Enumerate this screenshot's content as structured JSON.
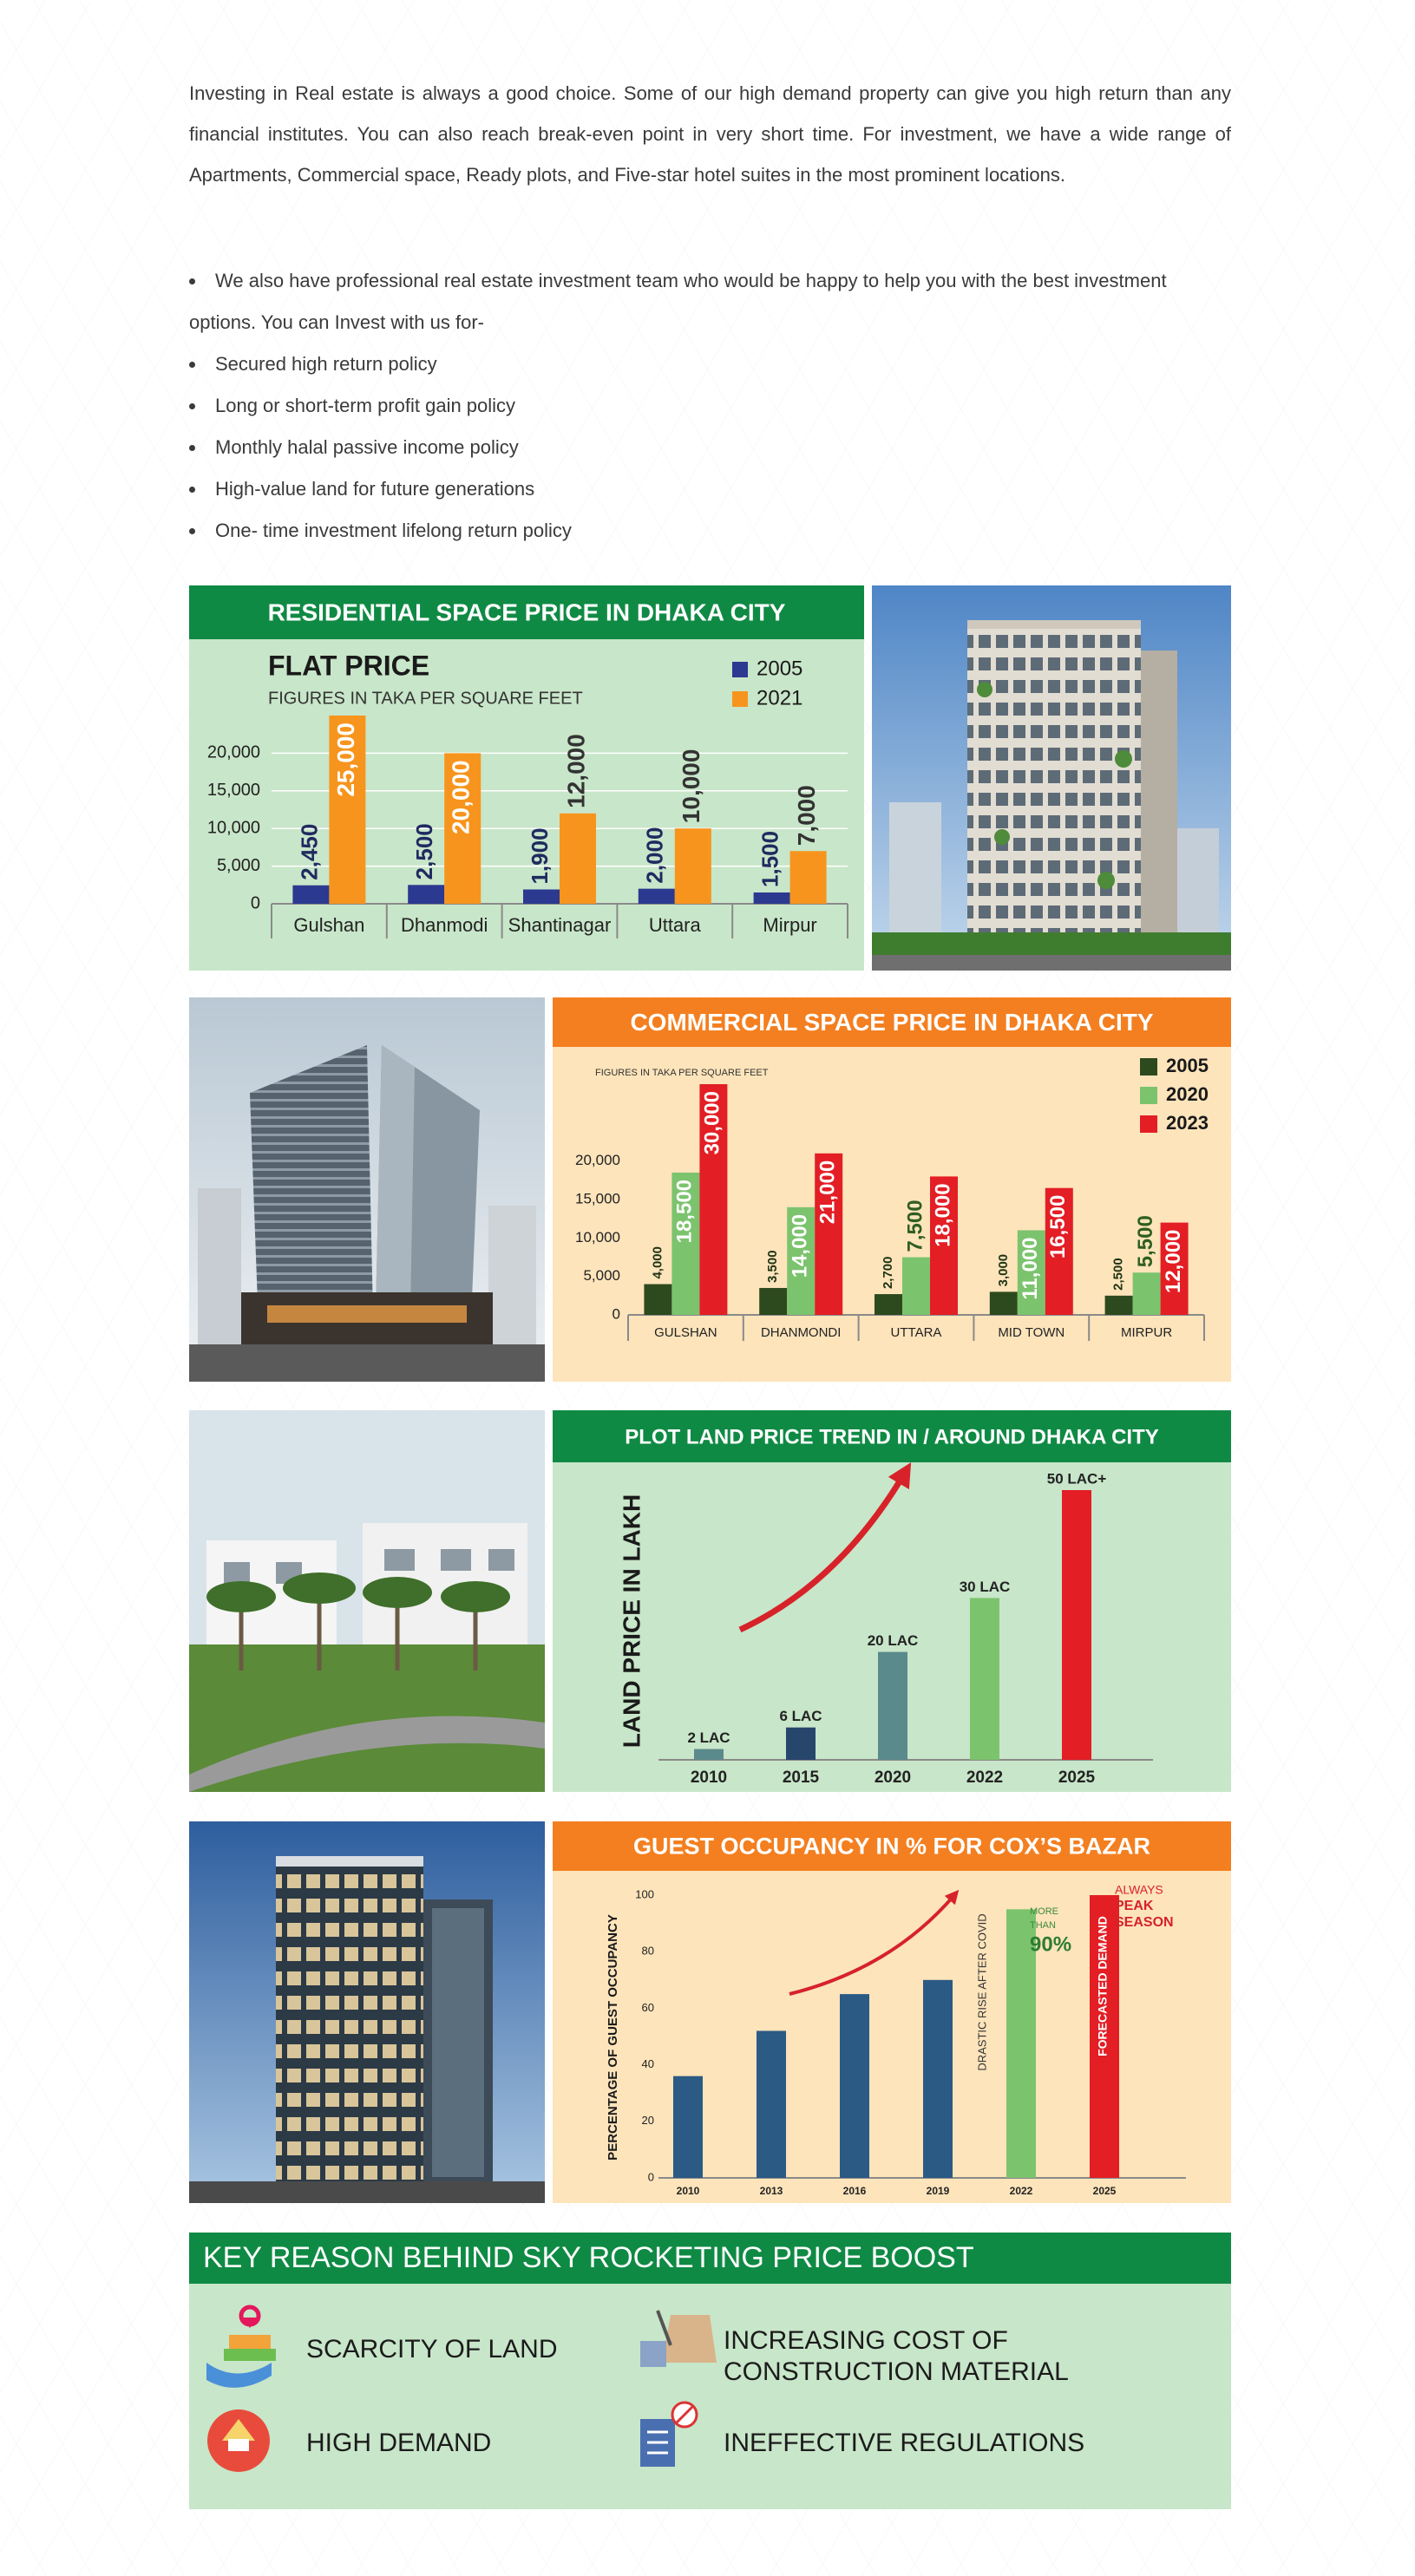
{
  "intro": "Investing in Real estate is always a good choice. Some of our high demand property can give you high return than any financial institutes. You can also reach break-even point in very short time. For investment, we have a wide range of Apartments, Commercial space, Ready plots, and Five-star hotel suites in the most prominent locations.",
  "bullets": [
    "We also have professional real estate investment team who would be happy to help you with the best investment options. You can Invest with us for-",
    "Secured high return policy",
    "Long or short-term profit gain policy",
    "Monthly halal passive income policy",
    "High-value land for future generations",
    "One- time investment lifelong return policy"
  ],
  "chart_data": [
    {
      "type": "bar",
      "title": "RESIDENTIAL SPACE PRICE IN DHAKA CITY",
      "heading": "FLAT PRICE",
      "subtitle": "FIGURES IN TAKA PER SQUARE FEET",
      "categories": [
        "Gulshan",
        "Dhanmodi",
        "Shantinagar",
        "Uttara",
        "Mirpur"
      ],
      "series": [
        {
          "name": "2005",
          "color": "#2b3990",
          "values": [
            2450,
            2500,
            1900,
            2000,
            1500
          ],
          "value_labels": [
            "2,450",
            "2,500",
            "1,900",
            "2,000",
            "1,500"
          ]
        },
        {
          "name": "2021",
          "color": "#f7941d",
          "values": [
            25000,
            20000,
            12000,
            10000,
            7000
          ],
          "value_labels": [
            "25,000",
            "20,000",
            "12,000",
            "10,000",
            "7,000"
          ]
        }
      ],
      "ylim": [
        0,
        25000
      ],
      "yticks": [
        0,
        {
          "value": 5000,
          "label": "5,000"
        },
        {
          "value": 10000,
          "label": "10,000"
        },
        {
          "value": 15000,
          "label": "15,000"
        },
        {
          "value": 20000,
          "label": "20,000"
        }
      ],
      "grid": true,
      "legend": "upper right"
    },
    {
      "type": "bar",
      "title": "COMMERCIAL SPACE PRICE IN DHAKA CITY",
      "subtitle": "FIGURES IN TAKA PER SQUARE FEET",
      "categories": [
        "GULSHAN",
        "DHANMONDI",
        "UTTARA",
        "MID TOWN",
        "MIRPUR"
      ],
      "series": [
        {
          "name": "2005",
          "color": "#2d4a1e",
          "values": [
            4000,
            3500,
            2700,
            3000,
            2500
          ],
          "value_labels": [
            "4,000",
            "3,500",
            "2,700",
            "3,000",
            "2,500"
          ]
        },
        {
          "name": "2020",
          "color": "#7cc36e",
          "values": [
            18500,
            14000,
            7500,
            11000,
            5500
          ],
          "value_labels": [
            "18,500",
            "14,000",
            "7,500",
            "11,000",
            "5,500"
          ]
        },
        {
          "name": "2023",
          "color": "#e31e25",
          "values": [
            30000,
            21000,
            18000,
            16500,
            12000
          ],
          "value_labels": [
            "30,000",
            "21,000",
            "18,000",
            "16,500",
            "12,000"
          ]
        }
      ],
      "ylim": [
        0,
        30000
      ],
      "yticks": [
        0,
        {
          "value": 5000,
          "label": "5,000"
        },
        {
          "value": 10000,
          "label": "10,000"
        },
        {
          "value": 15000,
          "label": "15,000"
        },
        {
          "value": 20000,
          "label": "20,000"
        }
      ],
      "grid": false,
      "legend": "upper right"
    },
    {
      "type": "bar",
      "title": "PLOT LAND PRICE TREND IN / AROUND DHAKA CITY",
      "ylabel": "LAND PRICE IN LAKH",
      "categories": [
        "2010",
        "2015",
        "2020",
        "2022",
        "2025"
      ],
      "values": [
        2,
        6,
        20,
        30,
        50
      ],
      "value_labels": [
        "2 LAC",
        "6 LAC",
        "20 LAC",
        "30 LAC",
        "50 LAC+"
      ],
      "colors": [
        "#5b8a8c",
        "#27466b",
        "#5b8a8c",
        "#7cc36e",
        "#e31e25"
      ],
      "ylim": [
        0,
        50
      ],
      "grid": false
    },
    {
      "type": "bar",
      "title": "GUEST OCCUPANCY IN % FOR COX’S BAZAR",
      "ylabel": "PERCENTAGE OF GUEST OCCUPANCY",
      "categories": [
        "2010",
        "2013",
        "2016",
        "2019",
        "2022",
        "2025"
      ],
      "values": [
        36,
        52,
        65,
        70,
        95,
        100
      ],
      "colors": [
        "#2b5a85",
        "#2b5a85",
        "#2b5a85",
        "#2b5a85",
        "#7cc36e",
        "#e31e25"
      ],
      "ylim": [
        0,
        100
      ],
      "yticks": [
        0,
        20,
        40,
        60,
        80,
        100
      ],
      "grid": false,
      "annotations": [
        "DRASTIC RISE AFTER COVID",
        "MORE",
        "THAN",
        "90%",
        "FORECASTED DEMAND",
        "ALWAYS",
        "PEAK",
        "SEASON"
      ]
    }
  ],
  "key_reasons": {
    "title": "KEY REASON BEHIND SKY ROCKETING PRICE BOOST",
    "items": [
      "SCARCITY OF LAND",
      "INCREASING COST OF\nCONSTRUCTION  MATERIAL",
      "HIGH  DEMAND",
      "INEFFECTIVE REGULATIONS"
    ]
  }
}
